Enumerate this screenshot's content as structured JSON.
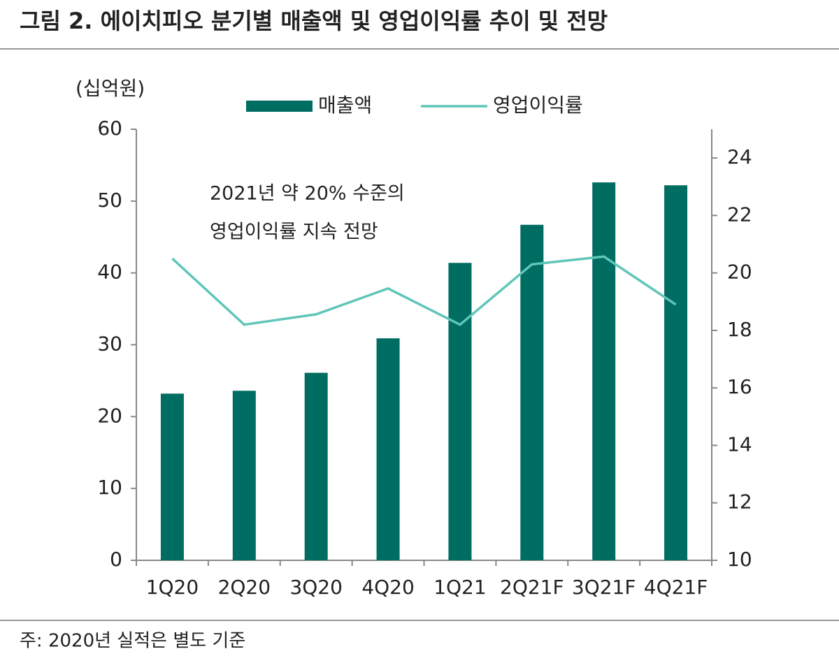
{
  "chart_data": {
    "type": "bar-line",
    "title": "그림 2. 에이치피오 분기별 매출액 및 영업이익률 추이 및 전망",
    "unit_label": "(십억원)",
    "annotation": [
      "2021년 약 20% 수준의",
      "영업이익률 지속 전망"
    ],
    "note": "주: 2020년 실적은 별도 기준",
    "categories": [
      "1Q20",
      "2Q20",
      "3Q20",
      "4Q20",
      "1Q21",
      "2Q21F",
      "3Q21F",
      "4Q21F"
    ],
    "series": [
      {
        "name": "매출액",
        "type": "bar",
        "color": "#006d62",
        "values": [
          23.2,
          23.6,
          26.1,
          30.9,
          41.4,
          46.7,
          52.6,
          52.2
        ]
      },
      {
        "name": "영업이익률",
        "type": "line",
        "axis": "y2",
        "color": "#5fc6b8",
        "values": [
          20.5,
          18.2,
          18.56,
          19.46,
          18.2,
          20.3,
          20.57,
          18.9
        ]
      }
    ],
    "ylim": [
      0,
      60
    ],
    "yticks": [
      0,
      10,
      20,
      30,
      40,
      50,
      60
    ],
    "y2lim": [
      10,
      25
    ],
    "y2ticks": [
      10,
      12,
      14,
      16,
      18,
      20,
      22,
      24
    ],
    "legend": "top"
  }
}
